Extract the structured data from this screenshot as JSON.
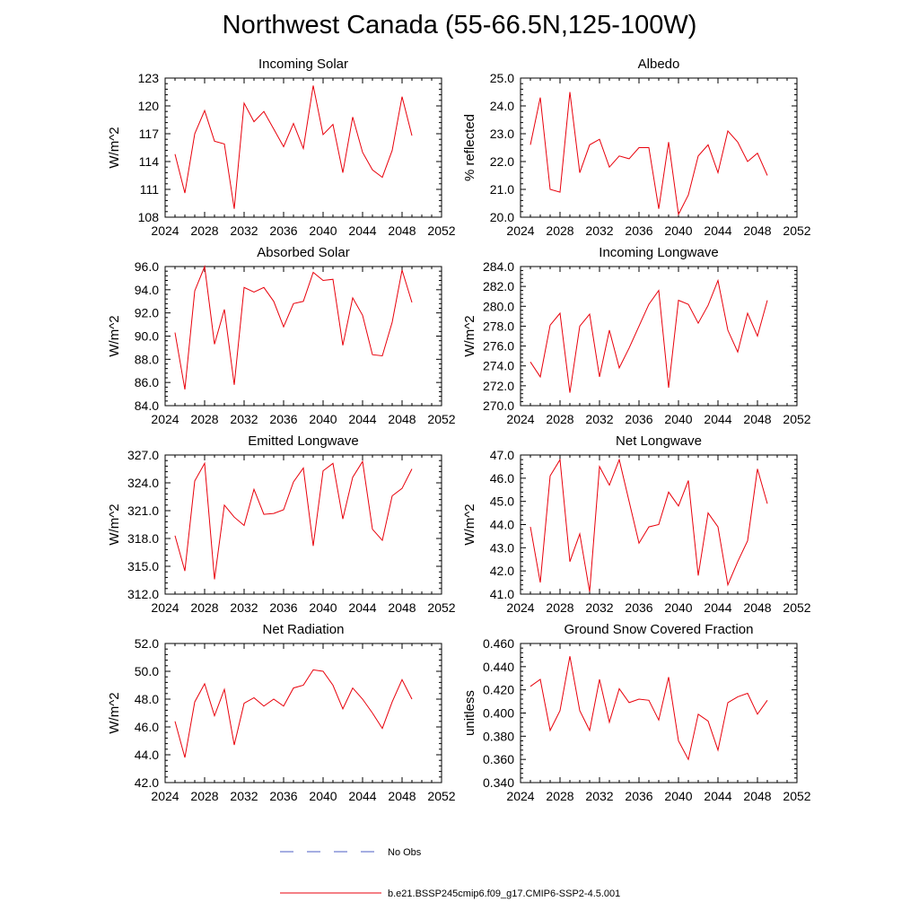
{
  "figure": {
    "title": "Northwest Canada (55-66.5N,125-100W)",
    "line_color": "#e8000b",
    "obs_color": "#4b5cc4"
  },
  "legend": {
    "obs_label": "No Obs",
    "model_label": "b.e21.BSSP245cmip6.f09_g17.CMIP6-SSP2-4.5.001"
  },
  "chart_data": [
    {
      "type": "line",
      "title": "Incoming Solar",
      "ylabel": "W/m^2",
      "xlim": [
        2024,
        2052
      ],
      "xticks": [
        "2024",
        "2028",
        "2032",
        "2036",
        "2040",
        "2044",
        "2048",
        "2052"
      ],
      "ylim": [
        108,
        123
      ],
      "yticks": [
        "108",
        "111",
        "114",
        "117",
        "120",
        "123"
      ],
      "x": [
        2025,
        2026,
        2027,
        2028,
        2029,
        2030,
        2031,
        2032,
        2033,
        2034,
        2035,
        2036,
        2037,
        2038,
        2039,
        2040,
        2041,
        2042,
        2043,
        2044,
        2045,
        2046,
        2047,
        2048,
        2049
      ],
      "series": [
        {
          "values": [
            114.8,
            110.6,
            117.0,
            119.5,
            116.2,
            115.9,
            108.9,
            120.3,
            118.3,
            119.4,
            117.5,
            115.6,
            118.1,
            115.4,
            122.2,
            116.9,
            118.0,
            112.8,
            118.8,
            115.0,
            113.1,
            112.3,
            115.2,
            121.0,
            116.8
          ]
        }
      ]
    },
    {
      "type": "line",
      "title": "Albedo",
      "ylabel": "% reflected",
      "xlim": [
        2024,
        2052
      ],
      "xticks": [
        "2024",
        "2028",
        "2032",
        "2036",
        "2040",
        "2044",
        "2048",
        "2052"
      ],
      "ylim": [
        20.0,
        25.0
      ],
      "yticks": [
        "20.0",
        "21.0",
        "22.0",
        "23.0",
        "24.0",
        "25.0"
      ],
      "x": [
        2025,
        2026,
        2027,
        2028,
        2029,
        2030,
        2031,
        2032,
        2033,
        2034,
        2035,
        2036,
        2037,
        2038,
        2039,
        2040,
        2041,
        2042,
        2043,
        2044,
        2045,
        2046,
        2047,
        2048,
        2049
      ],
      "series": [
        {
          "values": [
            22.6,
            24.3,
            21.0,
            20.9,
            24.5,
            21.6,
            22.6,
            22.8,
            21.8,
            22.2,
            22.1,
            22.5,
            22.5,
            20.3,
            22.7,
            20.1,
            20.8,
            22.2,
            22.6,
            21.6,
            23.1,
            22.7,
            22.0,
            22.3,
            21.5
          ]
        }
      ]
    },
    {
      "type": "line",
      "title": "Absorbed Solar",
      "ylabel": "W/m^2",
      "xlim": [
        2024,
        2052
      ],
      "xticks": [
        "2024",
        "2028",
        "2032",
        "2036",
        "2040",
        "2044",
        "2048",
        "2052"
      ],
      "ylim": [
        84.0,
        96.0
      ],
      "yticks": [
        "84.0",
        "86.0",
        "88.0",
        "90.0",
        "92.0",
        "94.0",
        "96.0"
      ],
      "x": [
        2025,
        2026,
        2027,
        2028,
        2029,
        2030,
        2031,
        2032,
        2033,
        2034,
        2035,
        2036,
        2037,
        2038,
        2039,
        2040,
        2041,
        2042,
        2043,
        2044,
        2045,
        2046,
        2047,
        2048,
        2049
      ],
      "series": [
        {
          "values": [
            90.3,
            85.4,
            93.9,
            96.0,
            89.3,
            92.3,
            85.8,
            94.2,
            93.8,
            94.2,
            93.0,
            90.8,
            92.8,
            93.0,
            95.5,
            94.8,
            94.9,
            89.2,
            93.3,
            91.8,
            88.4,
            88.3,
            91.2,
            95.7,
            92.9
          ]
        }
      ]
    },
    {
      "type": "line",
      "title": "Incoming Longwave",
      "ylabel": "W/m^2",
      "xlim": [
        2024,
        2052
      ],
      "xticks": [
        "2024",
        "2028",
        "2032",
        "2036",
        "2040",
        "2044",
        "2048",
        "2052"
      ],
      "ylim": [
        270.0,
        284.0
      ],
      "yticks": [
        "270.0",
        "272.0",
        "274.0",
        "276.0",
        "278.0",
        "280.0",
        "282.0",
        "284.0"
      ],
      "x": [
        2025,
        2026,
        2027,
        2028,
        2029,
        2030,
        2031,
        2032,
        2033,
        2034,
        2035,
        2036,
        2037,
        2038,
        2039,
        2040,
        2041,
        2042,
        2043,
        2044,
        2045,
        2046,
        2047,
        2048,
        2049
      ],
      "series": [
        {
          "values": [
            274.4,
            272.9,
            278.1,
            279.3,
            271.3,
            278.0,
            279.2,
            272.9,
            277.6,
            273.8,
            275.8,
            278.0,
            280.2,
            281.6,
            271.8,
            280.6,
            280.2,
            278.3,
            280.1,
            282.6,
            277.6,
            275.4,
            279.3,
            277.0,
            280.6
          ]
        }
      ]
    },
    {
      "type": "line",
      "title": "Emitted Longwave",
      "ylabel": "W/m^2",
      "xlim": [
        2024,
        2052
      ],
      "xticks": [
        "2024",
        "2028",
        "2032",
        "2036",
        "2040",
        "2044",
        "2048",
        "2052"
      ],
      "ylim": [
        312.0,
        327.0
      ],
      "yticks": [
        "312.0",
        "315.0",
        "318.0",
        "321.0",
        "324.0",
        "327.0"
      ],
      "x": [
        2025,
        2026,
        2027,
        2028,
        2029,
        2030,
        2031,
        2032,
        2033,
        2034,
        2035,
        2036,
        2037,
        2038,
        2039,
        2040,
        2041,
        2042,
        2043,
        2044,
        2045,
        2046,
        2047,
        2048,
        2049
      ],
      "series": [
        {
          "values": [
            318.3,
            314.5,
            324.2,
            326.1,
            313.6,
            321.6,
            320.3,
            319.4,
            323.3,
            320.6,
            320.7,
            321.1,
            324.1,
            325.6,
            317.2,
            325.3,
            326.1,
            320.1,
            324.6,
            326.3,
            319.0,
            317.8,
            322.6,
            323.4,
            325.5
          ]
        }
      ]
    },
    {
      "type": "line",
      "title": "Net Longwave",
      "ylabel": "W/m^2",
      "xlim": [
        2024,
        2052
      ],
      "xticks": [
        "2024",
        "2028",
        "2032",
        "2036",
        "2040",
        "2044",
        "2048",
        "2052"
      ],
      "ylim": [
        41.0,
        47.0
      ],
      "yticks": [
        "41.0",
        "42.0",
        "43.0",
        "44.0",
        "45.0",
        "46.0",
        "47.0"
      ],
      "x": [
        2025,
        2026,
        2027,
        2028,
        2029,
        2030,
        2031,
        2032,
        2033,
        2034,
        2035,
        2036,
        2037,
        2038,
        2039,
        2040,
        2041,
        2042,
        2043,
        2044,
        2045,
        2046,
        2047,
        2048,
        2049
      ],
      "series": [
        {
          "values": [
            43.9,
            41.5,
            46.1,
            46.8,
            42.4,
            43.6,
            41.1,
            46.5,
            45.7,
            46.8,
            45.0,
            43.2,
            43.9,
            44.0,
            45.4,
            44.8,
            45.9,
            41.8,
            44.5,
            43.9,
            41.4,
            42.4,
            43.3,
            46.4,
            44.9
          ]
        }
      ]
    },
    {
      "type": "line",
      "title": "Net Radiation",
      "ylabel": "W/m^2",
      "xlim": [
        2024,
        2052
      ],
      "xticks": [
        "2024",
        "2028",
        "2032",
        "2036",
        "2040",
        "2044",
        "2048",
        "2052"
      ],
      "ylim": [
        42.0,
        52.0
      ],
      "yticks": [
        "42.0",
        "44.0",
        "46.0",
        "48.0",
        "50.0",
        "52.0"
      ],
      "x": [
        2025,
        2026,
        2027,
        2028,
        2029,
        2030,
        2031,
        2032,
        2033,
        2034,
        2035,
        2036,
        2037,
        2038,
        2039,
        2040,
        2041,
        2042,
        2043,
        2044,
        2045,
        2046,
        2047,
        2048,
        2049
      ],
      "series": [
        {
          "values": [
            46.4,
            43.8,
            47.8,
            49.1,
            46.8,
            48.7,
            44.7,
            47.7,
            48.1,
            47.5,
            48.0,
            47.5,
            48.8,
            49.0,
            50.1,
            50.0,
            49.0,
            47.3,
            48.8,
            48.0,
            47.0,
            45.9,
            47.8,
            49.4,
            48.0
          ]
        }
      ]
    },
    {
      "type": "line",
      "title": "Ground Snow Covered Fraction",
      "ylabel": "unitless",
      "xlim": [
        2024,
        2052
      ],
      "xticks": [
        "2024",
        "2028",
        "2032",
        "2036",
        "2040",
        "2044",
        "2048",
        "2052"
      ],
      "ylim": [
        0.34,
        0.46
      ],
      "yticks": [
        "0.340",
        "0.360",
        "0.380",
        "0.400",
        "0.420",
        "0.440",
        "0.460"
      ],
      "x": [
        2025,
        2026,
        2027,
        2028,
        2029,
        2030,
        2031,
        2032,
        2033,
        2034,
        2035,
        2036,
        2037,
        2038,
        2039,
        2040,
        2041,
        2042,
        2043,
        2044,
        2045,
        2046,
        2047,
        2048,
        2049
      ],
      "series": [
        {
          "values": [
            0.423,
            0.429,
            0.385,
            0.402,
            0.449,
            0.402,
            0.385,
            0.429,
            0.392,
            0.421,
            0.409,
            0.412,
            0.411,
            0.394,
            0.431,
            0.376,
            0.36,
            0.399,
            0.393,
            0.368,
            0.409,
            0.414,
            0.417,
            0.399,
            0.411
          ]
        }
      ]
    }
  ]
}
